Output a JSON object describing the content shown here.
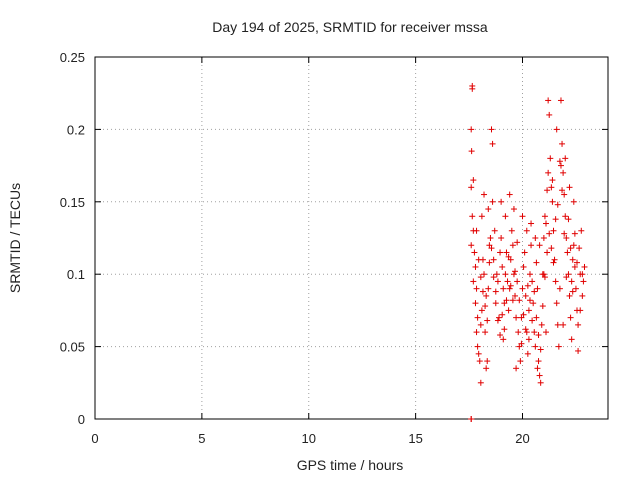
{
  "chart_data": {
    "type": "scatter",
    "title": "Day 194 of 2025, SRMTID for receiver mssa",
    "xlabel": "GPS time / hours",
    "ylabel": "SRMTID / TECUs",
    "xlim": [
      0,
      24
    ],
    "ylim": [
      0,
      0.25
    ],
    "x_ticks": [
      0,
      5,
      10,
      15,
      20
    ],
    "y_ticks": [
      0,
      0.05,
      0.1,
      0.15,
      0.2,
      0.25
    ],
    "x_tick_labels": [
      "0",
      "5",
      "10",
      "15",
      "20"
    ],
    "y_tick_labels": [
      "0",
      "0.05",
      "0.1",
      "0.15",
      "0.2",
      "0.25"
    ],
    "grid": true,
    "marker": "plus",
    "color": "#e00000",
    "series": [
      {
        "name": "SRMTID",
        "points": [
          [
            17.6,
            0.0
          ],
          [
            17.6,
            0.0
          ],
          [
            17.65,
            0.23
          ],
          [
            17.65,
            0.228
          ],
          [
            17.6,
            0.2
          ],
          [
            17.62,
            0.185
          ],
          [
            17.6,
            0.16
          ],
          [
            17.7,
            0.165
          ],
          [
            17.65,
            0.14
          ],
          [
            17.7,
            0.13
          ],
          [
            17.6,
            0.12
          ],
          [
            17.75,
            0.115
          ],
          [
            17.8,
            0.105
          ],
          [
            17.7,
            0.095
          ],
          [
            17.85,
            0.09
          ],
          [
            17.8,
            0.08
          ],
          [
            17.9,
            0.07
          ],
          [
            17.85,
            0.06
          ],
          [
            17.9,
            0.05
          ],
          [
            17.95,
            0.045
          ],
          [
            18.0,
            0.04
          ],
          [
            18.05,
            0.065
          ],
          [
            18.1,
            0.075
          ],
          [
            18.2,
            0.1
          ],
          [
            18.15,
            0.11
          ],
          [
            18.3,
            0.085
          ],
          [
            18.25,
            0.06
          ],
          [
            18.35,
            0.04
          ],
          [
            18.4,
            0.09
          ],
          [
            18.45,
            0.12
          ],
          [
            18.5,
            0.125
          ],
          [
            18.55,
            0.2
          ],
          [
            18.6,
            0.19
          ],
          [
            18.6,
            0.15
          ],
          [
            18.7,
            0.13
          ],
          [
            18.65,
            0.11
          ],
          [
            18.8,
            0.1
          ],
          [
            18.75,
            0.08
          ],
          [
            18.9,
            0.07
          ],
          [
            18.85,
            0.095
          ],
          [
            18.95,
            0.115
          ],
          [
            19.0,
            0.125
          ],
          [
            19.05,
            0.105
          ],
          [
            19.1,
            0.09
          ],
          [
            19.15,
            0.08
          ],
          [
            19.2,
            0.1
          ],
          [
            19.25,
            0.115
          ],
          [
            19.3,
            0.095
          ],
          [
            19.35,
            0.075
          ],
          [
            19.4,
            0.09
          ],
          [
            19.45,
            0.11
          ],
          [
            19.5,
            0.13
          ],
          [
            19.55,
            0.12
          ],
          [
            19.6,
            0.1
          ],
          [
            19.65,
            0.085
          ],
          [
            19.7,
            0.07
          ],
          [
            19.75,
            0.095
          ],
          [
            19.8,
            0.06
          ],
          [
            19.85,
            0.05
          ],
          [
            19.9,
            0.04
          ],
          [
            19.95,
            0.07
          ],
          [
            20.0,
            0.09
          ],
          [
            20.05,
            0.105
          ],
          [
            20.1,
            0.115
          ],
          [
            20.15,
            0.085
          ],
          [
            20.2,
            0.06
          ],
          [
            20.25,
            0.045
          ],
          [
            20.3,
            0.075
          ],
          [
            20.35,
            0.1
          ],
          [
            20.4,
            0.12
          ],
          [
            20.45,
            0.095
          ],
          [
            20.5,
            0.08
          ],
          [
            20.55,
            0.06
          ],
          [
            20.6,
            0.05
          ],
          [
            20.65,
            0.07
          ],
          [
            20.7,
            0.09
          ],
          [
            20.75,
            0.04
          ],
          [
            20.8,
            0.03
          ],
          [
            20.85,
            0.025
          ],
          [
            20.9,
            0.065
          ],
          [
            20.95,
            0.1
          ],
          [
            21.0,
            0.125
          ],
          [
            21.05,
            0.14
          ],
          [
            21.1,
            0.135
          ],
          [
            21.15,
            0.115
          ],
          [
            21.2,
            0.22
          ],
          [
            21.25,
            0.21
          ],
          [
            21.3,
            0.18
          ],
          [
            21.35,
            0.16
          ],
          [
            21.4,
            0.15
          ],
          [
            21.45,
            0.13
          ],
          [
            21.5,
            0.11
          ],
          [
            21.55,
            0.095
          ],
          [
            21.6,
            0.08
          ],
          [
            21.65,
            0.065
          ],
          [
            21.7,
            0.05
          ],
          [
            21.75,
            0.09
          ],
          [
            21.8,
            0.22
          ],
          [
            21.85,
            0.19
          ],
          [
            21.9,
            0.17
          ],
          [
            21.95,
            0.155
          ],
          [
            22.0,
            0.14
          ],
          [
            22.05,
            0.125
          ],
          [
            22.1,
            0.115
          ],
          [
            22.15,
            0.1
          ],
          [
            22.2,
            0.085
          ],
          [
            22.25,
            0.07
          ],
          [
            22.3,
            0.095
          ],
          [
            22.35,
            0.11
          ],
          [
            22.4,
            0.12
          ],
          [
            22.45,
            0.105
          ],
          [
            22.5,
            0.09
          ],
          [
            22.55,
            0.075
          ],
          [
            22.6,
            0.065
          ],
          [
            22.7,
            0.1
          ],
          [
            22.8,
            0.085
          ],
          [
            22.6,
            0.047
          ],
          [
            22.9,
            0.105
          ],
          [
            22.85,
            0.095
          ],
          [
            22.75,
            0.13
          ],
          [
            18.1,
            0.14
          ],
          [
            18.2,
            0.155
          ],
          [
            18.4,
            0.145
          ],
          [
            19.0,
            0.15
          ],
          [
            19.2,
            0.14
          ],
          [
            19.4,
            0.155
          ],
          [
            19.6,
            0.145
          ],
          [
            20.0,
            0.14
          ],
          [
            20.2,
            0.13
          ],
          [
            20.4,
            0.135
          ],
          [
            20.6,
            0.125
          ],
          [
            20.8,
            0.12
          ],
          [
            21.0,
            0.1
          ],
          [
            21.2,
            0.17
          ],
          [
            21.4,
            0.165
          ],
          [
            21.6,
            0.2
          ],
          [
            21.8,
            0.175
          ],
          [
            22.0,
            0.18
          ],
          [
            22.2,
            0.16
          ],
          [
            22.4,
            0.15
          ],
          [
            18.05,
            0.025
          ],
          [
            18.3,
            0.035
          ],
          [
            19.1,
            0.055
          ],
          [
            19.7,
            0.035
          ],
          [
            20.3,
            0.055
          ],
          [
            20.7,
            0.035
          ],
          [
            21.1,
            0.06
          ],
          [
            21.9,
            0.065
          ],
          [
            22.3,
            0.055
          ],
          [
            22.7,
            0.075
          ],
          [
            17.85,
            0.13
          ],
          [
            17.95,
            0.11
          ],
          [
            18.05,
            0.098
          ],
          [
            18.15,
            0.088
          ],
          [
            18.25,
            0.078
          ],
          [
            18.35,
            0.068
          ],
          [
            18.45,
            0.108
          ],
          [
            18.55,
            0.118
          ],
          [
            18.65,
            0.098
          ],
          [
            18.75,
            0.088
          ],
          [
            18.85,
            0.068
          ],
          [
            18.95,
            0.058
          ],
          [
            19.05,
            0.072
          ],
          [
            19.15,
            0.062
          ],
          [
            19.25,
            0.082
          ],
          [
            19.35,
            0.112
          ],
          [
            19.45,
            0.092
          ],
          [
            19.55,
            0.082
          ],
          [
            19.65,
            0.102
          ],
          [
            19.75,
            0.122
          ],
          [
            19.85,
            0.082
          ],
          [
            19.95,
            0.052
          ],
          [
            20.05,
            0.072
          ],
          [
            20.15,
            0.062
          ],
          [
            20.25,
            0.092
          ],
          [
            20.35,
            0.082
          ],
          [
            20.45,
            0.068
          ],
          [
            20.55,
            0.088
          ],
          [
            20.65,
            0.108
          ],
          [
            20.75,
            0.058
          ],
          [
            20.85,
            0.048
          ],
          [
            20.95,
            0.078
          ],
          [
            21.05,
            0.098
          ],
          [
            21.15,
            0.158
          ],
          [
            21.25,
            0.128
          ],
          [
            21.35,
            0.118
          ],
          [
            21.45,
            0.108
          ],
          [
            21.55,
            0.138
          ],
          [
            21.65,
            0.148
          ],
          [
            21.75,
            0.178
          ],
          [
            21.85,
            0.158
          ],
          [
            21.95,
            0.128
          ],
          [
            22.05,
            0.098
          ],
          [
            22.15,
            0.138
          ],
          [
            22.25,
            0.118
          ],
          [
            22.35,
            0.088
          ],
          [
            22.45,
            0.128
          ],
          [
            22.55,
            0.108
          ],
          [
            22.65,
            0.118
          ],
          [
            22.8,
            0.1
          ]
        ]
      }
    ]
  }
}
